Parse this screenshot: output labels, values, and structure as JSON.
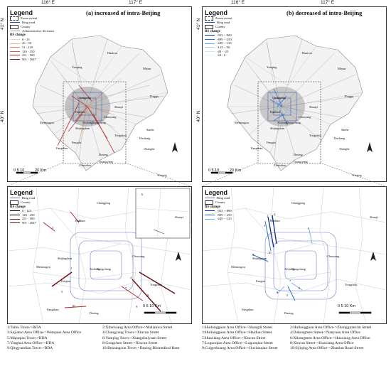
{
  "coords": {
    "lon1": "116° E",
    "lon2": "117° E",
    "lat1": "41° N",
    "lat2": "40° N"
  },
  "panel_a": {
    "title": "(a) increased of intra-Beijing"
  },
  "panel_b": {
    "title": "(b) decreased of intra-Beijing"
  },
  "legend_top": {
    "title": "Legend",
    "zoom": "Zoom extent",
    "ring": "Ring road",
    "county": "County",
    "admin": "Administrative divisions",
    "rs": "RS change"
  },
  "legend_a_classes": [
    "0 - 25",
    "26 - 50",
    "51 - 125",
    "126 - 250",
    "251 - 900",
    "901 - 2047"
  ],
  "legend_a_colors": [
    "#f6d0b8",
    "#f2b08e",
    "#e8886a",
    "#d95d48",
    "#b52a26",
    "#6e0f14"
  ],
  "legend_b_classes": [
    "-923 - -900",
    "-899 - -250",
    "-249 - -125",
    "-124 - -50",
    "-49 - -25",
    "-24 - 0"
  ],
  "legend_b_colors": [
    "#0b2a8c",
    "#2b6fd6",
    "#6aaee8",
    "#a8d2f0",
    "#cfe6f6",
    "#e8f3fb"
  ],
  "legend_bottom": {
    "title": "Legend",
    "ring": "Ring road",
    "county": "County",
    "rs": "RS change"
  },
  "legend_c_classes": [
    "0 - 125",
    "126 - 250",
    "251 - 900",
    "901 - 2047"
  ],
  "legend_d_classes": [
    "-923 - -900",
    "-899 - -250",
    "-249 - -125"
  ],
  "scale_top": {
    "ticks": "0 5 10",
    "unit": "20 Km"
  },
  "scale_bottom": {
    "ticks": "0      5     10 Km"
  },
  "places_top": [
    "Huairou",
    "Yanqing",
    "Miyun",
    "Changping",
    "Shunyi",
    "Pinggu",
    "Mentougou",
    "Haidian",
    "Chaoyang",
    "Xicheng",
    "Dongcheng",
    "Shijingshan",
    "Tongzhou",
    "Fengtai",
    "Sanhe",
    "Dachang",
    "Fangshan",
    "Daxing",
    "Xianghe",
    "Zhuozhou",
    "Guangyang",
    "Wuqing"
  ],
  "places_bottom": [
    "Changping",
    "Shunyi",
    "Haidian",
    "Mentougou",
    "Shijingshan",
    "Chaoyang",
    "Xicheng",
    "Dongcheng",
    "Fengtai",
    "Tongzhou",
    "Fangshan",
    "Daxing"
  ],
  "notes_left": [
    "1:Taihu Town->BDA",
    "3:Sujiatuo Area Office->Wenquan Area Office",
    "5:Majuqiao Town->BDA",
    "7:Yinghai Area Office->BDA",
    "9:Qingyundian Town->BDA"
  ],
  "notes_mid": [
    "2:Xibeiwang Area Office->Malianwa Street",
    "4:Changyang Town->Xincun Street",
    "6:Yanqing Town->Xiangshuiyuan Street",
    "8:Gongchen Street->Xincun Street",
    "10:Beizangcun Town->Daxing Biomedical Base"
  ],
  "notes_right1": [
    "1:Huilongguan Area Office->Shangdi Street",
    "3:Huilongguan Area Office->Haidian Street",
    "5:Huaxiang Area Office->Xincun Street",
    "7:Luguoqiao Area Office->Luguoqiao Street",
    "9:Cuigezhuang Area Office->Jiuxianqiao Street"
  ],
  "notes_right2": [
    "2:Huilongguan Area Office->Zhongguancun Street",
    "4:Dahongmen Street->Nanyuan Area Office",
    "6:Xihongmen Area Office->Huaxiang Area Office",
    "8:Xincun Street->Huaxiang Area Office",
    "10:Sijiqing Area Office->Zhanlan Road Street"
  ],
  "flow_labels_c": [
    "1",
    "2",
    "3",
    "4",
    "5",
    "6",
    "7",
    "8",
    "9",
    "10"
  ],
  "flow_labels_d": [
    "1",
    "2",
    "3",
    "4",
    "5",
    "6",
    "7",
    "8",
    "9",
    "10"
  ]
}
